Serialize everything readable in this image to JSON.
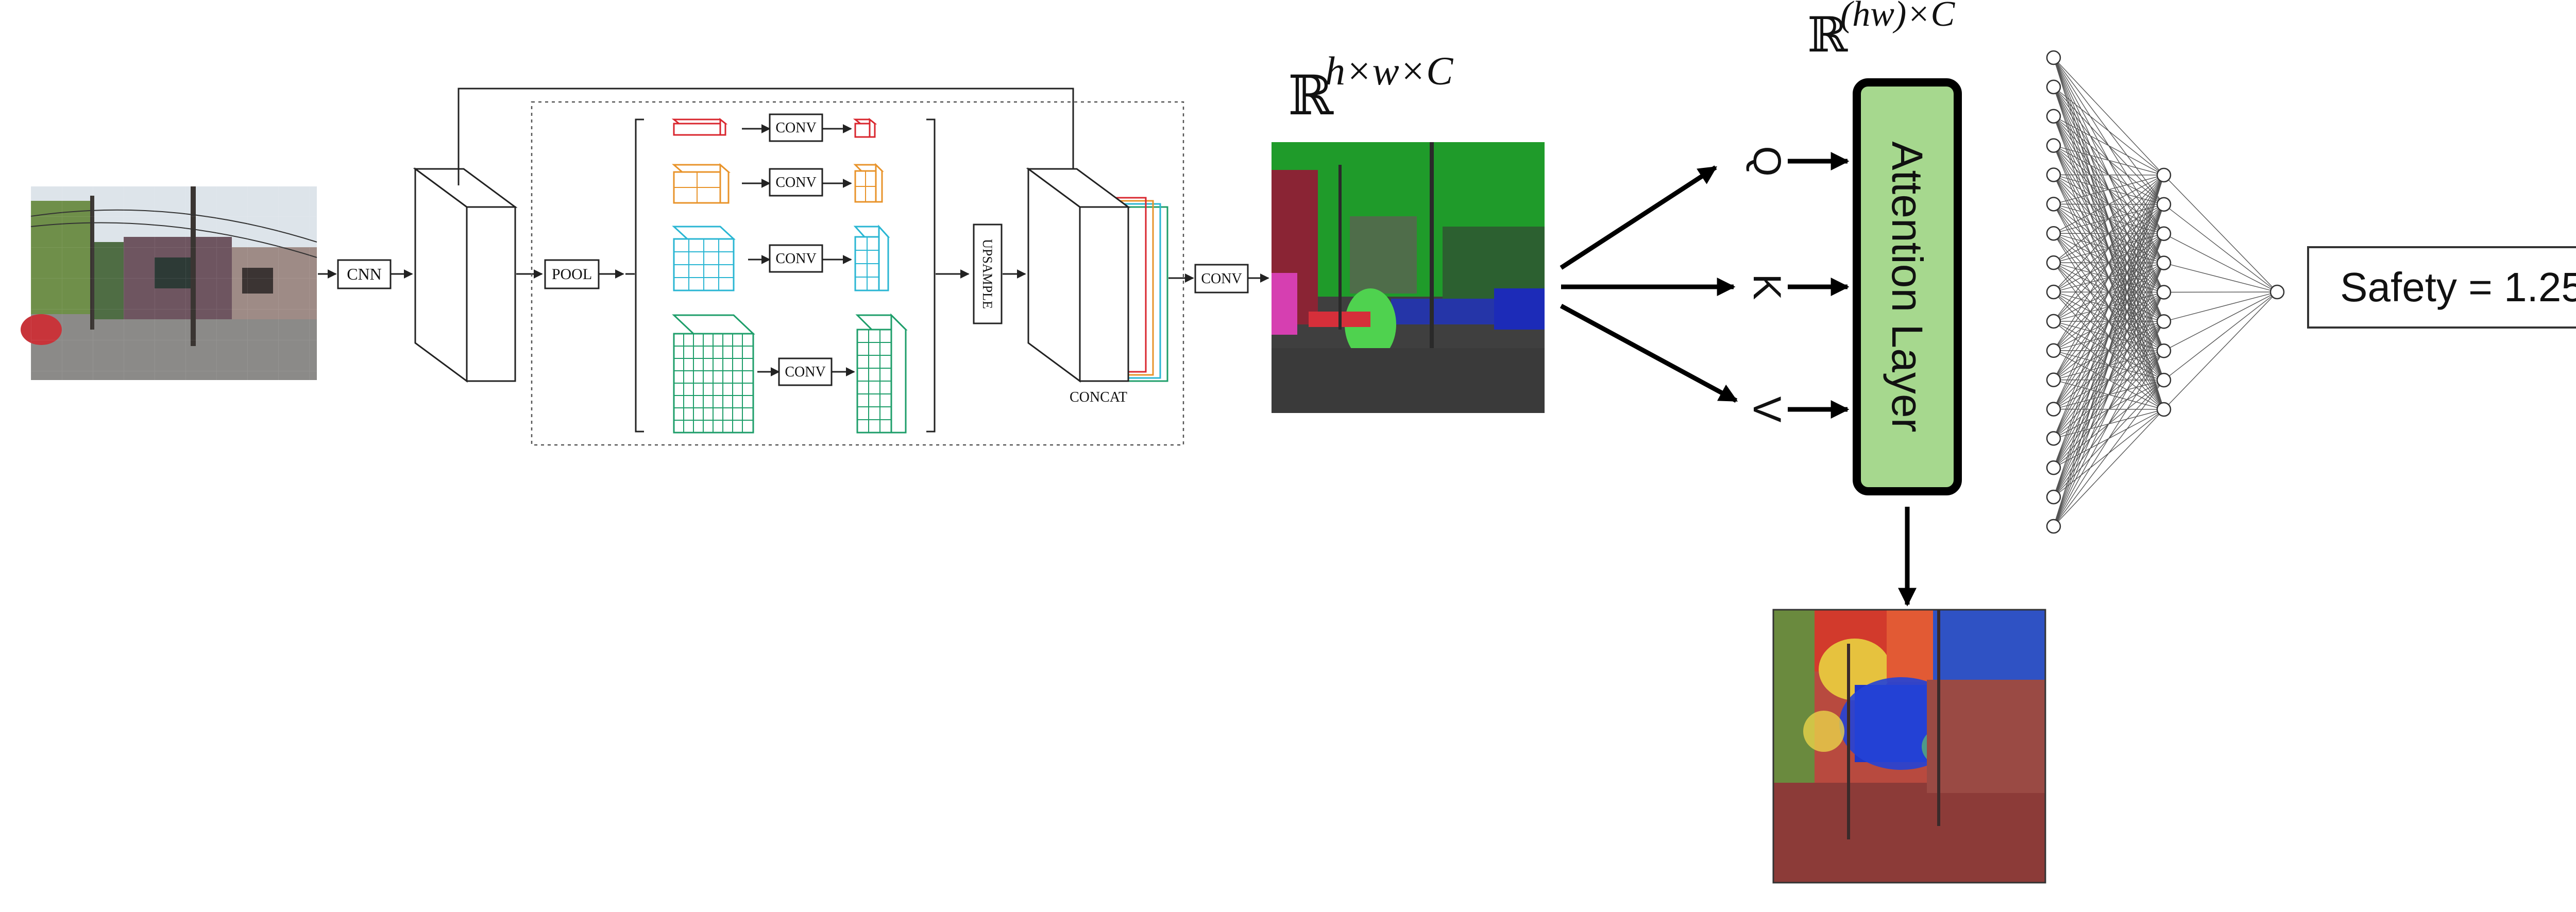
{
  "pipeline": {
    "cnn_label": "CNN",
    "pool_label": "POOL",
    "conv_label": "CONV",
    "upsample_label": "UPSAMPLE",
    "concat_label": "CONCAT",
    "final_conv_label": "CONV"
  },
  "feature_math": {
    "blackboard_r": "ℝ",
    "seg_dims": "h×w×C",
    "attn_dims": "(hw)×C"
  },
  "attention": {
    "query_label": "Q",
    "key_label": "K",
    "value_label": "V",
    "layer_label": "Attention Layer"
  },
  "output": {
    "safety_text": "Safety = 1.25"
  },
  "network": {
    "input_nodes": 17,
    "hidden_nodes": 9,
    "output_nodes": 1
  },
  "colors": {
    "pyramid_red": "#d9262e",
    "pyramid_orange": "#e8932a",
    "pyramid_cyan": "#2ab6d3",
    "pyramid_green": "#1e9e6a",
    "attention_fill": "#a6d88e"
  }
}
